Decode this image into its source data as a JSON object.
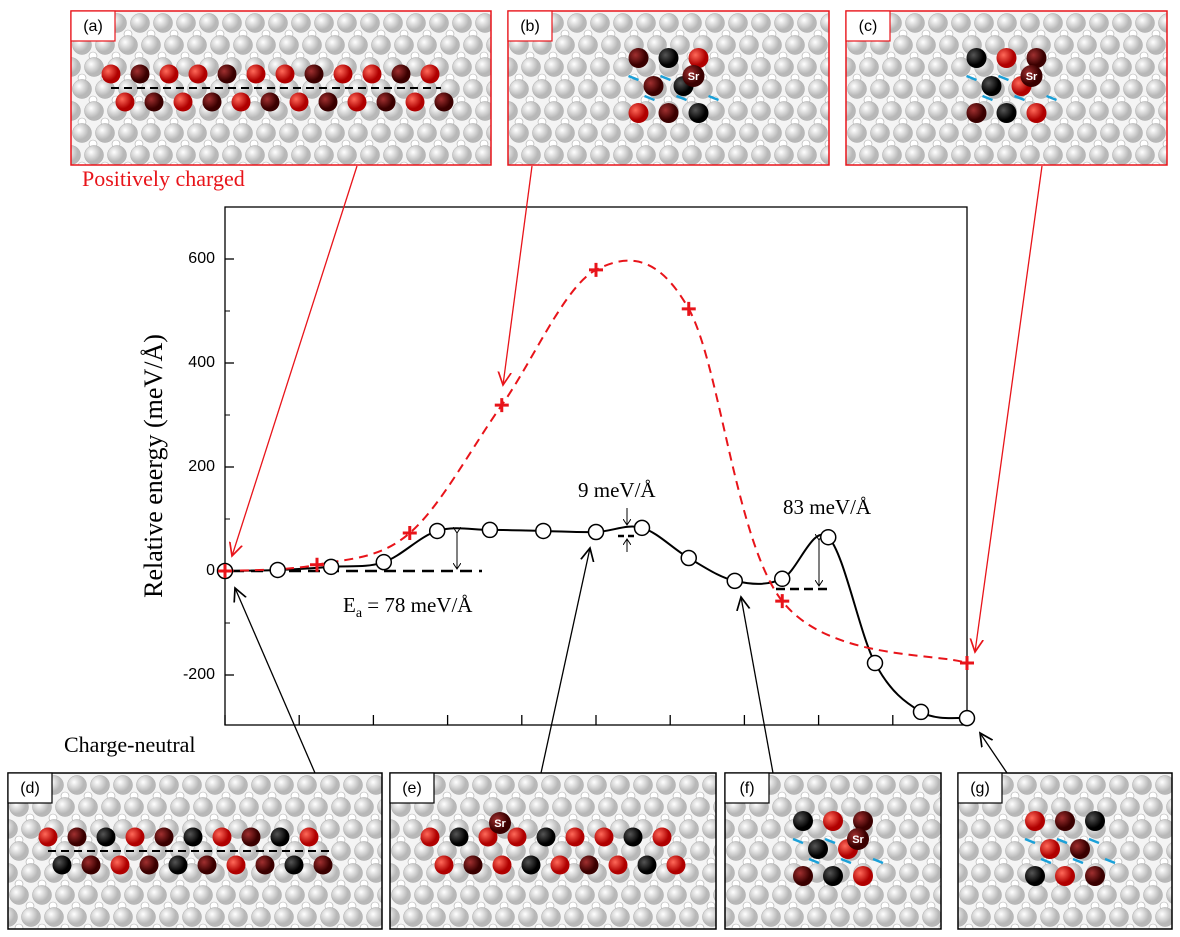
{
  "chart_data": {
    "type": "line",
    "y_label": "Relative energy (meV/Å)",
    "xlim": [
      0,
      10
    ],
    "xticks": [
      0,
      1,
      2,
      3,
      4,
      5,
      6,
      7,
      8,
      9,
      10
    ],
    "ylim": [
      -300,
      700
    ],
    "yticks": [
      -200,
      0,
      200,
      400,
      600
    ],
    "series": [
      {
        "name": "Charge-neutral",
        "color": "#000000",
        "marker": "circle",
        "dash": false,
        "x": [
          0,
          0.71,
          1.43,
          2.14,
          2.86,
          3.57,
          4.29,
          5.0,
          5.62,
          6.25,
          6.87,
          7.51,
          8.13,
          8.76,
          9.38,
          10
        ],
        "values": [
          0,
          2,
          8,
          17,
          77,
          79,
          77,
          75,
          83,
          25,
          -19,
          -15,
          65,
          -177,
          -271,
          -283
        ]
      },
      {
        "name": "Positively charged",
        "color": "#e8141a",
        "marker": "plus",
        "dash": true,
        "x": [
          0,
          1.24,
          2.49,
          3.73,
          5.0,
          6.25,
          7.51,
          10
        ],
        "values": [
          0,
          12,
          73,
          319,
          579,
          504,
          -58,
          -177
        ]
      }
    ],
    "annotations": {
      "barrier_small": "9 meV/Å",
      "barrier_large": "83 meV/Å",
      "ea_symbol": "E",
      "ea_sub": "a",
      "ea_text": " = 78 meV/Å"
    },
    "insets": [
      {
        "label": "(a)"
      },
      {
        "label": "(b)",
        "sr": "Sr"
      },
      {
        "label": "(c)",
        "sr": "Sr"
      },
      {
        "label": "(d)"
      },
      {
        "label": "(e)",
        "sr": "Sr"
      },
      {
        "label": "(f)",
        "sr": "Sr"
      },
      {
        "label": "(g)"
      }
    ]
  }
}
